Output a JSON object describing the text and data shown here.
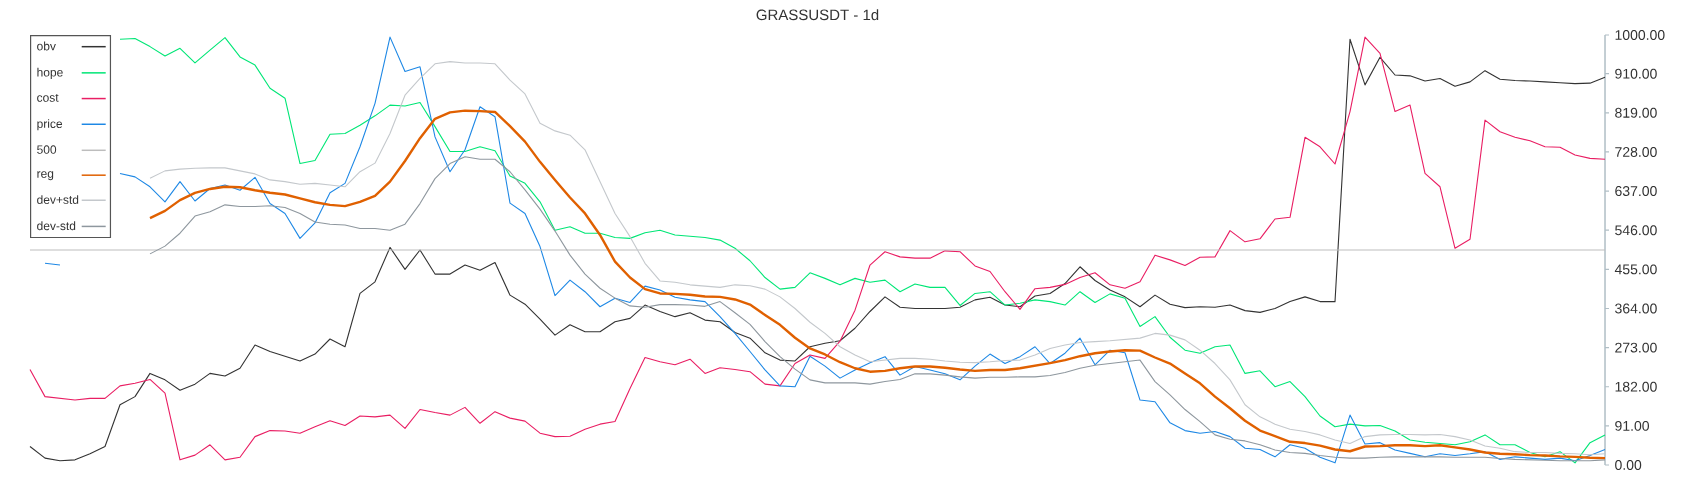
{
  "chart_data": {
    "type": "line",
    "title": "GRASSUSDT - 1d",
    "categories": [
      null,
      null,
      null,
      null,
      null,
      null,
      null,
      null,
      null,
      null,
      null,
      null,
      null,
      null,
      null,
      null,
      null,
      null,
      null,
      null,
      null,
      null,
      null,
      null,
      null,
      null,
      null,
      null,
      null,
      null,
      null,
      null,
      null,
      null,
      null,
      null,
      null,
      null,
      null,
      null,
      null,
      null,
      null,
      null,
      null,
      null,
      null,
      null,
      null,
      null,
      null,
      null,
      null,
      null,
      null,
      null,
      null,
      null,
      null,
      null,
      null,
      null,
      null,
      null,
      null,
      null,
      null,
      null,
      null,
      null,
      null,
      null,
      null,
      null,
      null,
      null,
      null,
      null,
      null,
      null,
      null,
      null,
      null,
      null,
      null,
      null,
      null,
      null,
      null,
      null,
      null,
      null,
      null,
      null,
      null,
      null,
      null,
      null,
      null,
      null,
      null,
      null,
      null,
      null,
      null,
      null
    ],
    "series": [
      {
        "name": "obv",
        "color": "#333333",
        "values": [
          43,
          16,
          10,
          12,
          26,
          43,
          140,
          159,
          213,
          198,
          174,
          188,
          213,
          207,
          225,
          279,
          264,
          253,
          242,
          258,
          293,
          275,
          399,
          426,
          506,
          455,
          500,
          444,
          444,
          465,
          453,
          471,
          395,
          374,
          339,
          302,
          326,
          310,
          310,
          333,
          341,
          372,
          357,
          345,
          354,
          337,
          333,
          308,
          295,
          261,
          244,
          242,
          275,
          283,
          289,
          318,
          357,
          391,
          367,
          364,
          364,
          364,
          367,
          384,
          390,
          372,
          368,
          393,
          399,
          422,
          461,
          429,
          407,
          391,
          368,
          395,
          374,
          366,
          368,
          367,
          372,
          359,
          355,
          364,
          380,
          391,
          380,
          380,
          990,
          884,
          948,
          907,
          905,
          893,
          899,
          881,
          891,
          917,
          897,
          894,
          893,
          891,
          889,
          887,
          888,
          902
        ]
      },
      {
        "name": "hope",
        "color": "#00e676",
        "values": [
          null,
          null,
          null,
          null,
          null,
          null,
          990,
          992,
          973,
          951,
          969,
          935,
          965,
          994,
          949,
          930,
          876,
          853,
          701,
          708,
          769,
          771,
          790,
          812,
          837,
          835,
          843,
          787,
          729,
          729,
          740,
          731,
          672,
          655,
          612,
          546,
          554,
          539,
          539,
          529,
          527,
          540,
          546,
          535,
          532,
          529,
          523,
          504,
          475,
          436,
          409,
          413,
          447,
          434,
          419,
          434,
          425,
          430,
          403,
          421,
          413,
          413,
          371,
          399,
          403,
          372,
          376,
          384,
          380,
          372,
          403,
          378,
          398,
          388,
          322,
          345,
          297,
          267,
          260,
          275,
          279,
          213,
          219,
          182,
          194,
          159,
          114,
          89,
          95,
          91,
          92,
          79,
          58,
          53,
          50,
          47,
          54,
          70,
          47,
          47,
          29,
          19,
          31,
          5,
          52,
          70
        ]
      },
      {
        "name": "cost",
        "color": "#e91e63",
        "values": [
          222,
          159,
          155,
          151,
          155,
          155,
          184,
          190,
          199,
          167,
          12,
          23,
          47,
          12,
          18,
          66,
          80,
          79,
          74,
          89,
          103,
          92,
          114,
          112,
          116,
          85,
          129,
          122,
          116,
          134,
          97,
          124,
          109,
          102,
          74,
          66,
          67,
          83,
          95,
          101,
          178,
          250,
          240,
          233,
          246,
          213,
          226,
          222,
          217,
          188,
          184,
          236,
          256,
          248,
          288,
          360,
          465,
          496,
          484,
          481,
          481,
          498,
          496,
          463,
          450,
          403,
          362,
          410,
          413,
          420,
          436,
          447,
          419,
          411,
          426,
          488,
          477,
          464,
          483,
          484,
          545,
          519,
          526,
          572,
          576,
          762,
          740,
          700,
          822,
          995,
          957,
          822,
          837,
          678,
          647,
          504,
          525,
          802,
          775,
          762,
          754,
          740,
          739,
          721,
          713,
          711
        ]
      },
      {
        "name": "price",
        "color": "#1e88e5",
        "values": [
          null,
          469,
          465,
          null,
          null,
          null,
          678,
          670,
          647,
          612,
          659,
          614,
          643,
          651,
          639,
          669,
          608,
          585,
          527,
          563,
          633,
          655,
          740,
          841,
          995,
          915,
          926,
          763,
          682,
          733,
          833,
          810,
          609,
          585,
          508,
          394,
          430,
          403,
          368,
          388,
          378,
          416,
          407,
          390,
          384,
          380,
          345,
          306,
          264,
          221,
          184,
          182,
          253,
          230,
          202,
          221,
          238,
          252,
          209,
          229,
          221,
          212,
          198,
          230,
          258,
          236,
          252,
          275,
          236,
          260,
          295,
          233,
          267,
          261,
          151,
          147,
          98,
          80,
          74,
          78,
          66,
          39,
          36,
          19,
          47,
          39,
          18,
          5,
          116,
          49,
          52,
          35,
          27,
          19,
          26,
          22,
          26,
          31,
          13,
          19,
          16,
          13,
          16,
          10,
          22,
          36
        ]
      },
      {
        "name": "500",
        "color": "#bdbdbd",
        "values": [
          500,
          500,
          500,
          500,
          500,
          500,
          500,
          500,
          500,
          500,
          500,
          500,
          500,
          500,
          500,
          500,
          500,
          500,
          500,
          500,
          500,
          500,
          500,
          500,
          500,
          500,
          500,
          500,
          500,
          500,
          500,
          500,
          500,
          500,
          500,
          500,
          500,
          500,
          500,
          500,
          500,
          500,
          500,
          500,
          500,
          500,
          500,
          500,
          500,
          500,
          500,
          500,
          500,
          500,
          500,
          500,
          500,
          500,
          500,
          500,
          500,
          500,
          500,
          500,
          500,
          500,
          500,
          500,
          500,
          500,
          500,
          500,
          500,
          500,
          500,
          500,
          500,
          500,
          500,
          500,
          500,
          500,
          500,
          500,
          500,
          500,
          500,
          500,
          500,
          500,
          500,
          500,
          500,
          500,
          500,
          500,
          500,
          500,
          500,
          500,
          500,
          500,
          500,
          500,
          500,
          500
        ]
      },
      {
        "name": "reg",
        "color": "#e06000",
        "values": [
          null,
          null,
          null,
          null,
          null,
          null,
          null,
          null,
          574,
          591,
          616,
          633,
          642,
          647,
          646,
          639,
          633,
          629,
          620,
          611,
          605,
          602,
          612,
          626,
          659,
          707,
          760,
          805,
          820,
          824,
          823,
          821,
          788,
          752,
          705,
          663,
          622,
          585,
          535,
          473,
          436,
          409,
          399,
          398,
          396,
          392,
          391,
          385,
          373,
          349,
          326,
          296,
          271,
          257,
          239,
          225,
          217,
          219,
          225,
          229,
          229,
          226,
          222,
          219,
          221,
          221,
          225,
          231,
          237,
          244,
          253,
          260,
          264,
          267,
          266,
          250,
          236,
          213,
          190,
          159,
          132,
          103,
          80,
          67,
          54,
          51,
          45,
          36,
          32,
          43,
          44,
          46,
          46,
          44,
          46,
          41,
          36,
          29,
          26,
          25,
          23,
          22,
          20,
          19,
          17,
          16
        ]
      },
      {
        "name": "dev+std",
        "color": "#c4c8cc",
        "values": [
          null,
          null,
          null,
          null,
          null,
          null,
          null,
          null,
          667,
          684,
          688,
          690,
          691,
          691,
          684,
          677,
          663,
          659,
          653,
          655,
          651,
          647,
          682,
          702,
          771,
          860,
          899,
          933,
          938,
          935,
          935,
          933,
          895,
          863,
          795,
          777,
          767,
          733,
          659,
          585,
          531,
          469,
          428,
          425,
          419,
          416,
          413,
          419,
          417,
          409,
          391,
          364,
          332,
          306,
          275,
          256,
          240,
          244,
          248,
          248,
          246,
          242,
          239,
          238,
          240,
          243,
          244,
          256,
          271,
          279,
          285,
          287,
          289,
          292,
          295,
          306,
          302,
          291,
          267,
          236,
          198,
          140,
          112,
          95,
          83,
          78,
          70,
          58,
          50,
          66,
          70,
          71,
          71,
          70,
          71,
          66,
          58,
          44,
          39,
          31,
          29,
          29,
          27,
          26,
          24,
          26
        ]
      },
      {
        "name": "dev-std",
        "color": "#8e979e",
        "values": [
          null,
          null,
          null,
          null,
          null,
          null,
          null,
          null,
          491,
          509,
          539,
          579,
          589,
          605,
          601,
          601,
          603,
          599,
          585,
          565,
          560,
          558,
          550,
          550,
          546,
          560,
          608,
          666,
          701,
          717,
          711,
          711,
          682,
          640,
          595,
          544,
          488,
          444,
          411,
          388,
          370,
          367,
          373,
          373,
          372,
          369,
          380,
          354,
          327,
          287,
          252,
          223,
          198,
          191,
          191,
          191,
          188,
          194,
          199,
          212,
          212,
          209,
          205,
          202,
          204,
          204,
          205,
          205,
          208,
          215,
          225,
          232,
          236,
          240,
          244,
          194,
          163,
          129,
          101,
          70,
          60,
          56,
          47,
          35,
          29,
          27,
          22,
          18,
          16,
          16,
          18,
          19,
          19,
          19,
          19,
          18,
          18,
          18,
          15,
          13,
          12,
          11,
          10,
          10,
          10,
          12
        ]
      }
    ],
    "ylim": [
      0,
      1000
    ],
    "yticks": [
      {
        "value": 0,
        "label": "0.00"
      },
      {
        "value": 91,
        "label": "91.00"
      },
      {
        "value": 182,
        "label": "182.00"
      },
      {
        "value": 273,
        "label": "273.00"
      },
      {
        "value": 364,
        "label": "364.00"
      },
      {
        "value": 455,
        "label": "455.00"
      },
      {
        "value": 546,
        "label": "546.00"
      },
      {
        "value": 637,
        "label": "637.00"
      },
      {
        "value": 728,
        "label": "728.00"
      },
      {
        "value": 819,
        "label": "819.00"
      },
      {
        "value": 910,
        "label": "910.00"
      },
      {
        "value": 1000,
        "label": "1000.00"
      }
    ],
    "legend": "top left",
    "marker": "none",
    "line_style": "solid",
    "tick_labels": "y"
  }
}
